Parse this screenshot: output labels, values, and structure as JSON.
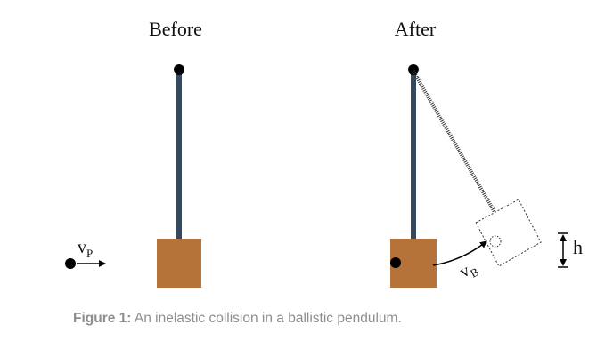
{
  "labels": {
    "before": "Before",
    "after": "After",
    "v_projectile": "v",
    "v_projectile_sub": "P",
    "v_block": "v",
    "v_block_sub": "B",
    "height": "h"
  },
  "caption": {
    "prefix": "Figure 1:",
    "text": " An inelastic collision in a ballistic pendulum."
  },
  "colors": {
    "rod": "#34495e",
    "block": "#b5733a",
    "dot": "#000000",
    "dashed": "#333333"
  }
}
